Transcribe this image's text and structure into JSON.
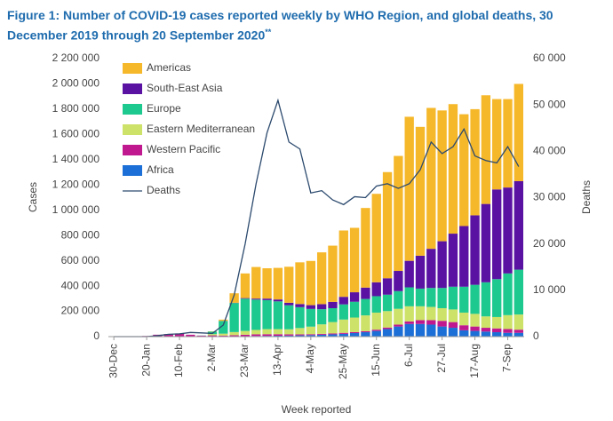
{
  "chart_data": {
    "type": "bar",
    "stacked": true,
    "title": "Figure 1: Number of COVID-19 cases reported weekly by WHO Region, and global deaths, 30 December 2019 through 20 September 2020",
    "title_note": "**",
    "x_label": "Week reported",
    "y_label": "Cases",
    "y2_label": "Deaths",
    "categories": [
      "30-Dec",
      null,
      null,
      "20-Jan",
      null,
      null,
      "10-Feb",
      null,
      null,
      "2-Mar",
      null,
      null,
      "23-Mar",
      null,
      null,
      "13-Apr",
      null,
      null,
      "4-May",
      null,
      null,
      "25-May",
      null,
      null,
      "15-Jun",
      null,
      null,
      "6-Jul",
      null,
      null,
      "27-Jul",
      null,
      null,
      "17-Aug",
      null,
      null,
      "7-Sep",
      null
    ],
    "ylim": [
      0,
      2200000
    ],
    "yticks": [
      0,
      {
        "value": 200000,
        "label": "200 000"
      },
      {
        "value": 400000,
        "label": "400 000"
      },
      {
        "value": 600000,
        "label": "600 000"
      },
      {
        "value": 800000,
        "label": "800 000"
      },
      {
        "value": 1000000,
        "label": "1 000 000"
      },
      {
        "value": 1200000,
        "label": "1 200 000"
      },
      {
        "value": 1400000,
        "label": "1 400 000"
      },
      {
        "value": 1600000,
        "label": "1 600 000"
      },
      {
        "value": 1800000,
        "label": "1 800 000"
      },
      {
        "value": 2000000,
        "label": "2 000 000"
      },
      {
        "value": 2200000,
        "label": "2 200 000"
      }
    ],
    "y2lim": [
      0,
      60000
    ],
    "y2ticks": [
      0,
      {
        "value": 10000,
        "label": "10 000"
      },
      {
        "value": 20000,
        "label": "20 000"
      },
      {
        "value": 30000,
        "label": "30 000"
      },
      {
        "value": 40000,
        "label": "40 000"
      },
      {
        "value": 50000,
        "label": "50 000"
      },
      {
        "value": 60000,
        "label": "60 000"
      }
    ],
    "legend": "top-left",
    "series": [
      {
        "name": "Americas",
        "color": "#f6b82b",
        "values": [
          0,
          0,
          0,
          0,
          0,
          0,
          0,
          0,
          0,
          2000,
          10000,
          75000,
          195000,
          250000,
          240000,
          250000,
          285000,
          330000,
          350000,
          410000,
          445000,
          525000,
          510000,
          630000,
          700000,
          840000,
          910000,
          1140000,
          1020000,
          1115000,
          1035000,
          1025000,
          885000,
          840000,
          860000,
          715000,
          700000,
          770000
        ]
      },
      {
        "name": "South-East Asia",
        "color": "#5a12a3",
        "values": [
          0,
          0,
          0,
          0,
          0,
          0,
          0,
          0,
          0,
          0,
          1000,
          2000,
          5000,
          8000,
          12000,
          15000,
          20000,
          25000,
          30000,
          40000,
          50000,
          60000,
          75000,
          90000,
          110000,
          130000,
          160000,
          210000,
          260000,
          310000,
          370000,
          420000,
          480000,
          550000,
          620000,
          710000,
          680000,
          700000
        ]
      },
      {
        "name": "Europe",
        "color": "#1ec98f",
        "values": [
          0,
          0,
          0,
          0,
          0,
          0,
          0,
          0,
          1000,
          20000,
          100000,
          230000,
          255000,
          240000,
          230000,
          220000,
          190000,
          165000,
          140000,
          120000,
          110000,
          120000,
          125000,
          130000,
          130000,
          130000,
          140000,
          150000,
          140000,
          150000,
          160000,
          180000,
          205000,
          230000,
          270000,
          300000,
          330000,
          355000
        ]
      },
      {
        "name": "Eastern Mediterranean",
        "color": "#cde268",
        "values": [
          0,
          0,
          0,
          0,
          0,
          0,
          0,
          0,
          0,
          10000,
          15000,
          25000,
          30000,
          35000,
          40000,
          40000,
          40000,
          50000,
          60000,
          75000,
          90000,
          105000,
          115000,
          125000,
          135000,
          130000,
          125000,
          120000,
          110000,
          105000,
          100000,
          100000,
          100000,
          100000,
          90000,
          90000,
          110000,
          120000
        ]
      },
      {
        "name": "Western Pacific",
        "color": "#c0198f",
        "values": [
          0,
          0,
          1000,
          5000,
          15000,
          20000,
          25000,
          15000,
          8000,
          10000,
          8000,
          10000,
          12000,
          13000,
          13000,
          12000,
          10000,
          8000,
          7000,
          7000,
          7000,
          8000,
          8000,
          8000,
          10000,
          12000,
          15000,
          20000,
          30000,
          35000,
          45000,
          45000,
          40000,
          35000,
          30000,
          30000,
          30000,
          25000
        ]
      },
      {
        "name": "Africa",
        "color": "#1c6fd6",
        "values": [
          0,
          0,
          0,
          0,
          0,
          0,
          0,
          0,
          0,
          0,
          500,
          1000,
          3000,
          5000,
          6000,
          7000,
          8000,
          10000,
          12000,
          15000,
          18000,
          22000,
          28000,
          35000,
          45000,
          60000,
          80000,
          100000,
          100000,
          95000,
          80000,
          70000,
          50000,
          45000,
          40000,
          35000,
          30000,
          30000
        ]
      },
      {
        "name": "Deaths",
        "type": "line",
        "axis": "y2",
        "color": "#2c4a6e",
        "values": [
          0,
          0,
          0,
          0,
          200,
          500,
          600,
          900,
          800,
          700,
          2500,
          9000,
          20000,
          33000,
          44000,
          51000,
          42000,
          40500,
          31000,
          31500,
          29500,
          28500,
          30200,
          30000,
          32500,
          33000,
          32000,
          33000,
          36000,
          42000,
          39500,
          41000,
          44800,
          39000,
          38000,
          37500,
          41000,
          36700
        ]
      }
    ]
  }
}
